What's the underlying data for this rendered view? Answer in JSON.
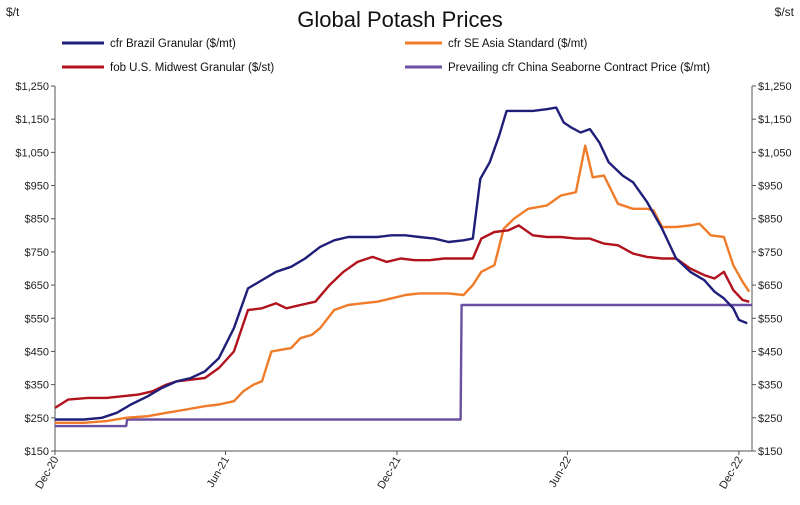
{
  "chart_data": {
    "type": "line",
    "title": "Global Potash Prices",
    "left_unit": "$/t",
    "right_unit": "$/st",
    "ylim": [
      150,
      1250
    ],
    "yticks": [
      150,
      250,
      350,
      450,
      550,
      650,
      750,
      850,
      950,
      1050,
      1150,
      1250
    ],
    "ytick_labels": [
      "$150",
      "$250",
      "$350",
      "$450",
      "$550",
      "$650",
      "$750",
      "$850",
      "$950",
      "$1,050",
      "$1,150",
      "$1,250"
    ],
    "xlim": [
      "2020-12-01",
      "2022-12-15"
    ],
    "xtick_labels": [
      {
        "label": "Dec-20",
        "date": "2020-12-01"
      },
      {
        "label": "Jun-21",
        "date": "2021-06-01"
      },
      {
        "label": "Dec-21",
        "date": "2021-12-01"
      },
      {
        "label": "Jun-22",
        "date": "2022-06-01"
      },
      {
        "label": "Dec-22",
        "date": "2022-12-01"
      }
    ],
    "grid": false,
    "legend_placement": "top",
    "series": [
      {
        "name": "cfr Brazil Granular ($/mt)",
        "color": "#1f1f7a",
        "points": [
          [
            "2020-12-01",
            245
          ],
          [
            "2021-01-01",
            245
          ],
          [
            "2021-01-20",
            250
          ],
          [
            "2021-02-05",
            265
          ],
          [
            "2021-02-20",
            290
          ],
          [
            "2021-03-10",
            315
          ],
          [
            "2021-03-25",
            340
          ],
          [
            "2021-04-10",
            360
          ],
          [
            "2021-04-25",
            370
          ],
          [
            "2021-05-10",
            390
          ],
          [
            "2021-05-25",
            430
          ],
          [
            "2021-06-10",
            520
          ],
          [
            "2021-06-25",
            640
          ],
          [
            "2021-07-10",
            665
          ],
          [
            "2021-07-25",
            690
          ],
          [
            "2021-08-10",
            705
          ],
          [
            "2021-08-25",
            730
          ],
          [
            "2021-09-10",
            765
          ],
          [
            "2021-09-25",
            785
          ],
          [
            "2021-10-10",
            795
          ],
          [
            "2021-10-25",
            795
          ],
          [
            "2021-11-10",
            795
          ],
          [
            "2021-11-25",
            800
          ],
          [
            "2021-12-10",
            800
          ],
          [
            "2021-12-25",
            795
          ],
          [
            "2022-01-10",
            790
          ],
          [
            "2022-01-25",
            780
          ],
          [
            "2022-02-10",
            785
          ],
          [
            "2022-02-20",
            790
          ],
          [
            "2022-02-28",
            970
          ],
          [
            "2022-03-10",
            1020
          ],
          [
            "2022-03-20",
            1100
          ],
          [
            "2022-03-28",
            1175
          ],
          [
            "2022-04-10",
            1175
          ],
          [
            "2022-04-25",
            1175
          ],
          [
            "2022-05-10",
            1180
          ],
          [
            "2022-05-20",
            1185
          ],
          [
            "2022-05-28",
            1140
          ],
          [
            "2022-06-05",
            1125
          ],
          [
            "2022-06-15",
            1110
          ],
          [
            "2022-06-25",
            1120
          ],
          [
            "2022-07-05",
            1080
          ],
          [
            "2022-07-15",
            1020
          ],
          [
            "2022-07-30",
            980
          ],
          [
            "2022-08-10",
            960
          ],
          [
            "2022-08-25",
            900
          ],
          [
            "2022-09-10",
            820
          ],
          [
            "2022-09-25",
            730
          ],
          [
            "2022-10-10",
            690
          ],
          [
            "2022-10-25",
            665
          ],
          [
            "2022-11-05",
            630
          ],
          [
            "2022-11-15",
            610
          ],
          [
            "2022-11-25",
            580
          ],
          [
            "2022-12-01",
            545
          ],
          [
            "2022-12-10",
            535
          ]
        ]
      },
      {
        "name": "cfr SE Asia Standard ($/mt)",
        "color": "#f07b29",
        "points": [
          [
            "2020-12-01",
            235
          ],
          [
            "2021-01-01",
            235
          ],
          [
            "2021-01-25",
            240
          ],
          [
            "2021-02-15",
            250
          ],
          [
            "2021-03-10",
            255
          ],
          [
            "2021-03-30",
            265
          ],
          [
            "2021-04-20",
            275
          ],
          [
            "2021-05-10",
            285
          ],
          [
            "2021-05-25",
            290
          ],
          [
            "2021-06-10",
            300
          ],
          [
            "2021-06-20",
            330
          ],
          [
            "2021-07-01",
            350
          ],
          [
            "2021-07-10",
            360
          ],
          [
            "2021-07-20",
            450
          ],
          [
            "2021-07-30",
            455
          ],
          [
            "2021-08-10",
            460
          ],
          [
            "2021-08-20",
            490
          ],
          [
            "2021-09-01",
            500
          ],
          [
            "2021-09-10",
            520
          ],
          [
            "2021-09-25",
            575
          ],
          [
            "2021-10-10",
            590
          ],
          [
            "2021-10-25",
            595
          ],
          [
            "2021-11-10",
            600
          ],
          [
            "2021-11-25",
            610
          ],
          [
            "2021-12-10",
            620
          ],
          [
            "2021-12-25",
            625
          ],
          [
            "2022-01-10",
            625
          ],
          [
            "2022-01-25",
            625
          ],
          [
            "2022-02-10",
            620
          ],
          [
            "2022-02-20",
            650
          ],
          [
            "2022-03-01",
            690
          ],
          [
            "2022-03-15",
            710
          ],
          [
            "2022-03-25",
            820
          ],
          [
            "2022-04-05",
            850
          ],
          [
            "2022-04-20",
            880
          ],
          [
            "2022-05-10",
            890
          ],
          [
            "2022-05-25",
            920
          ],
          [
            "2022-06-10",
            930
          ],
          [
            "2022-06-20",
            1070
          ],
          [
            "2022-06-28",
            975
          ],
          [
            "2022-07-10",
            980
          ],
          [
            "2022-07-25",
            895
          ],
          [
            "2022-08-10",
            880
          ],
          [
            "2022-08-25",
            880
          ],
          [
            "2022-09-01",
            875
          ],
          [
            "2022-09-10",
            825
          ],
          [
            "2022-09-25",
            825
          ],
          [
            "2022-10-10",
            830
          ],
          [
            "2022-10-20",
            835
          ],
          [
            "2022-11-01",
            800
          ],
          [
            "2022-11-15",
            795
          ],
          [
            "2022-11-25",
            710
          ],
          [
            "2022-12-05",
            660
          ],
          [
            "2022-12-12",
            630
          ]
        ]
      },
      {
        "name": "fob U.S. Midwest Granular ($/st)",
        "color": "#b1121c",
        "points": [
          [
            "2020-12-01",
            280
          ],
          [
            "2020-12-15",
            305
          ],
          [
            "2021-01-05",
            310
          ],
          [
            "2021-01-25",
            310
          ],
          [
            "2021-02-10",
            315
          ],
          [
            "2021-02-28",
            320
          ],
          [
            "2021-03-15",
            330
          ],
          [
            "2021-03-30",
            350
          ],
          [
            "2021-04-10",
            360
          ],
          [
            "2021-04-25",
            365
          ],
          [
            "2021-05-10",
            370
          ],
          [
            "2021-05-25",
            400
          ],
          [
            "2021-06-10",
            450
          ],
          [
            "2021-06-25",
            575
          ],
          [
            "2021-07-10",
            580
          ],
          [
            "2021-07-25",
            595
          ],
          [
            "2021-08-05",
            580
          ],
          [
            "2021-08-20",
            590
          ],
          [
            "2021-09-05",
            600
          ],
          [
            "2021-09-20",
            650
          ],
          [
            "2021-10-05",
            690
          ],
          [
            "2021-10-20",
            720
          ],
          [
            "2021-11-05",
            735
          ],
          [
            "2021-11-20",
            720
          ],
          [
            "2021-12-05",
            730
          ],
          [
            "2021-12-20",
            725
          ],
          [
            "2022-01-05",
            725
          ],
          [
            "2022-01-20",
            730
          ],
          [
            "2022-02-05",
            730
          ],
          [
            "2022-02-20",
            730
          ],
          [
            "2022-03-01",
            790
          ],
          [
            "2022-03-15",
            810
          ],
          [
            "2022-03-30",
            815
          ],
          [
            "2022-04-10",
            830
          ],
          [
            "2022-04-25",
            800
          ],
          [
            "2022-05-10",
            795
          ],
          [
            "2022-05-25",
            795
          ],
          [
            "2022-06-10",
            790
          ],
          [
            "2022-06-25",
            790
          ],
          [
            "2022-07-10",
            775
          ],
          [
            "2022-07-25",
            770
          ],
          [
            "2022-08-10",
            745
          ],
          [
            "2022-08-25",
            735
          ],
          [
            "2022-09-10",
            730
          ],
          [
            "2022-09-25",
            730
          ],
          [
            "2022-10-10",
            700
          ],
          [
            "2022-10-25",
            680
          ],
          [
            "2022-11-05",
            670
          ],
          [
            "2022-11-15",
            690
          ],
          [
            "2022-11-25",
            635
          ],
          [
            "2022-12-05",
            605
          ],
          [
            "2022-12-12",
            600
          ]
        ]
      },
      {
        "name": "Prevailing cfr China Seaborne Contract Price ($/mt)",
        "color": "#6b4fa0",
        "points": [
          [
            "2020-12-01",
            225
          ],
          [
            "2021-02-15",
            225
          ],
          [
            "2021-02-16",
            245
          ],
          [
            "2022-02-07",
            245
          ],
          [
            "2022-02-08",
            590
          ],
          [
            "2022-12-15",
            590
          ]
        ]
      }
    ]
  }
}
